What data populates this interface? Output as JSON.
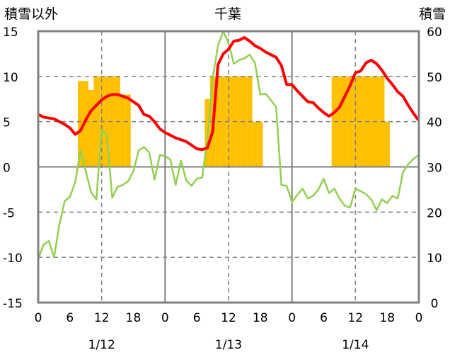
{
  "chart_data": {
    "type": "bar+line",
    "title": "千葉",
    "left_axis_title": "積雪以外",
    "right_axis_title": "積雪",
    "left_ylim": [
      -15,
      15
    ],
    "left_ticks": [
      "15",
      "10",
      "5",
      "0",
      "-5",
      "-10",
      "-15"
    ],
    "right_ylim": [
      0,
      60
    ],
    "right_ticks": [
      "60",
      "50",
      "40",
      "30",
      "20",
      "10",
      "0"
    ],
    "x_ticks": [
      "0",
      "6",
      "12",
      "18",
      "0",
      "6",
      "12",
      "18",
      "0",
      "6",
      "12",
      "18",
      "0"
    ],
    "date_labels": [
      "1/12",
      "1/13",
      "1/14"
    ],
    "x_range_hours": [
      0,
      72
    ],
    "colors": {
      "snow_bars": "#ffc000",
      "red_series": "#ff0000",
      "green_series": "#92d050",
      "purple_series": "#7030a0",
      "grid": "#808080",
      "frame": "#808080"
    },
    "snow_bars": {
      "axis": "right",
      "hours": [
        8,
        9,
        10,
        11,
        12,
        13,
        14,
        15,
        16,
        17,
        32,
        33,
        34,
        35,
        36,
        37,
        38,
        39,
        40,
        41,
        42,
        56,
        57,
        58,
        59,
        60,
        61,
        62,
        63,
        64,
        65,
        66
      ],
      "values": [
        49,
        49,
        47,
        50,
        50,
        50,
        50,
        50,
        46,
        46,
        45,
        50,
        50,
        50,
        50,
        50,
        50,
        50,
        50,
        40,
        40,
        50,
        50,
        50,
        50,
        50,
        50,
        50,
        50,
        50,
        50,
        40
      ]
    },
    "red_series": {
      "axis": "left",
      "points": [
        [
          0,
          5.8
        ],
        [
          1,
          5.5
        ],
        [
          2,
          5.4
        ],
        [
          3,
          5.3
        ],
        [
          4,
          5.0
        ],
        [
          5,
          4.7
        ],
        [
          6,
          4.3
        ],
        [
          7,
          3.6
        ],
        [
          8,
          4.0
        ],
        [
          9,
          5.2
        ],
        [
          10,
          6.2
        ],
        [
          11,
          6.8
        ],
        [
          12,
          7.4
        ],
        [
          13,
          7.8
        ],
        [
          14,
          8.0
        ],
        [
          15,
          8.0
        ],
        [
          16,
          7.8
        ],
        [
          17,
          7.6
        ],
        [
          18,
          7.2
        ],
        [
          19,
          6.8
        ],
        [
          20,
          5.8
        ],
        [
          21,
          5.6
        ],
        [
          22,
          5.0
        ],
        [
          23,
          4.2
        ],
        [
          24,
          3.8
        ],
        [
          25,
          3.5
        ],
        [
          26,
          3.2
        ],
        [
          27,
          3.0
        ],
        [
          28,
          2.8
        ],
        [
          29,
          2.4
        ],
        [
          30,
          2.0
        ],
        [
          31,
          1.9
        ],
        [
          32,
          2.1
        ],
        [
          33,
          3.9
        ],
        [
          34,
          11.3
        ],
        [
          35,
          12.5
        ],
        [
          36,
          13.0
        ],
        [
          37,
          13.9
        ],
        [
          38,
          14.0
        ],
        [
          39,
          14.3
        ],
        [
          40,
          13.9
        ],
        [
          41,
          13.4
        ],
        [
          42,
          13.1
        ],
        [
          43,
          12.7
        ],
        [
          44,
          12.4
        ],
        [
          45,
          12.1
        ],
        [
          46,
          11.2
        ],
        [
          47,
          9.1
        ],
        [
          48,
          9.1
        ],
        [
          49,
          8.4
        ],
        [
          50,
          7.8
        ],
        [
          51,
          7.2
        ],
        [
          52,
          7.1
        ],
        [
          53,
          6.5
        ],
        [
          54,
          6.0
        ],
        [
          55,
          5.6
        ],
        [
          56,
          6.0
        ],
        [
          57,
          6.6
        ],
        [
          58,
          7.8
        ],
        [
          59,
          9.0
        ],
        [
          60,
          10.4
        ],
        [
          61,
          10.6
        ],
        [
          62,
          11.5
        ],
        [
          63,
          11.8
        ],
        [
          64,
          11.4
        ],
        [
          65,
          10.7
        ],
        [
          66,
          9.8
        ],
        [
          67,
          9.1
        ],
        [
          68,
          8.3
        ],
        [
          69,
          7.8
        ],
        [
          70,
          6.8
        ],
        [
          71,
          5.9
        ],
        [
          72,
          5.1
        ]
      ]
    },
    "green_series": {
      "axis": "left",
      "points": [
        [
          0,
          -10.2
        ],
        [
          1,
          -8.6
        ],
        [
          2,
          -8.2
        ],
        [
          3,
          -10.0
        ],
        [
          4,
          -6.4
        ],
        [
          5,
          -3.8
        ],
        [
          6,
          -3.3
        ],
        [
          7,
          -1.7
        ],
        [
          8,
          1.8
        ],
        [
          9,
          -0.5
        ],
        [
          10,
          -2.8
        ],
        [
          11,
          -3.6
        ],
        [
          12,
          4.1
        ],
        [
          13,
          3.5
        ],
        [
          14,
          -3.4
        ],
        [
          15,
          -2.2
        ],
        [
          16,
          -2.0
        ],
        [
          17,
          -1.6
        ],
        [
          18,
          -0.5
        ],
        [
          19,
          1.8
        ],
        [
          20,
          2.2
        ],
        [
          21,
          1.6
        ],
        [
          22,
          -1.4
        ],
        [
          23,
          1.3
        ],
        [
          24,
          1.2
        ],
        [
          25,
          0.8
        ],
        [
          26,
          -2.0
        ],
        [
          27,
          0.7
        ],
        [
          28,
          -1.5
        ],
        [
          29,
          -2.1
        ],
        [
          30,
          -1.3
        ],
        [
          31,
          -1.2
        ],
        [
          32,
          3.0
        ],
        [
          33,
          9.8
        ],
        [
          34,
          13.4
        ],
        [
          35,
          15.0
        ],
        [
          36,
          13.7
        ],
        [
          37,
          11.4
        ],
        [
          38,
          11.8
        ],
        [
          39,
          12.0
        ],
        [
          40,
          12.4
        ],
        [
          41,
          11.5
        ],
        [
          42,
          8.0
        ],
        [
          43,
          8.1
        ],
        [
          44,
          7.4
        ],
        [
          45,
          6.6
        ],
        [
          46,
          -2.0
        ],
        [
          47,
          -2.1
        ],
        [
          48,
          -3.9
        ],
        [
          49,
          -3.1
        ],
        [
          50,
          -2.4
        ],
        [
          51,
          -3.5
        ],
        [
          52,
          -3.2
        ],
        [
          53,
          -2.5
        ],
        [
          54,
          -1.3
        ],
        [
          55,
          -2.9
        ],
        [
          56,
          -2.4
        ],
        [
          57,
          -3.5
        ],
        [
          58,
          -4.3
        ],
        [
          59,
          -4.5
        ],
        [
          60,
          -2.4
        ],
        [
          61,
          -2.7
        ],
        [
          62,
          -3.0
        ],
        [
          63,
          -3.6
        ],
        [
          64,
          -4.8
        ],
        [
          65,
          -3.6
        ],
        [
          66,
          -4.0
        ],
        [
          67,
          -3.2
        ],
        [
          68,
          -3.5
        ],
        [
          69,
          -0.6
        ],
        [
          70,
          0.3
        ],
        [
          71,
          0.9
        ],
        [
          72,
          1.3
        ]
      ]
    },
    "purple_series": {
      "axis": "left",
      "points": [
        [
          0,
          -15
        ],
        [
          72,
          -15
        ]
      ]
    }
  }
}
